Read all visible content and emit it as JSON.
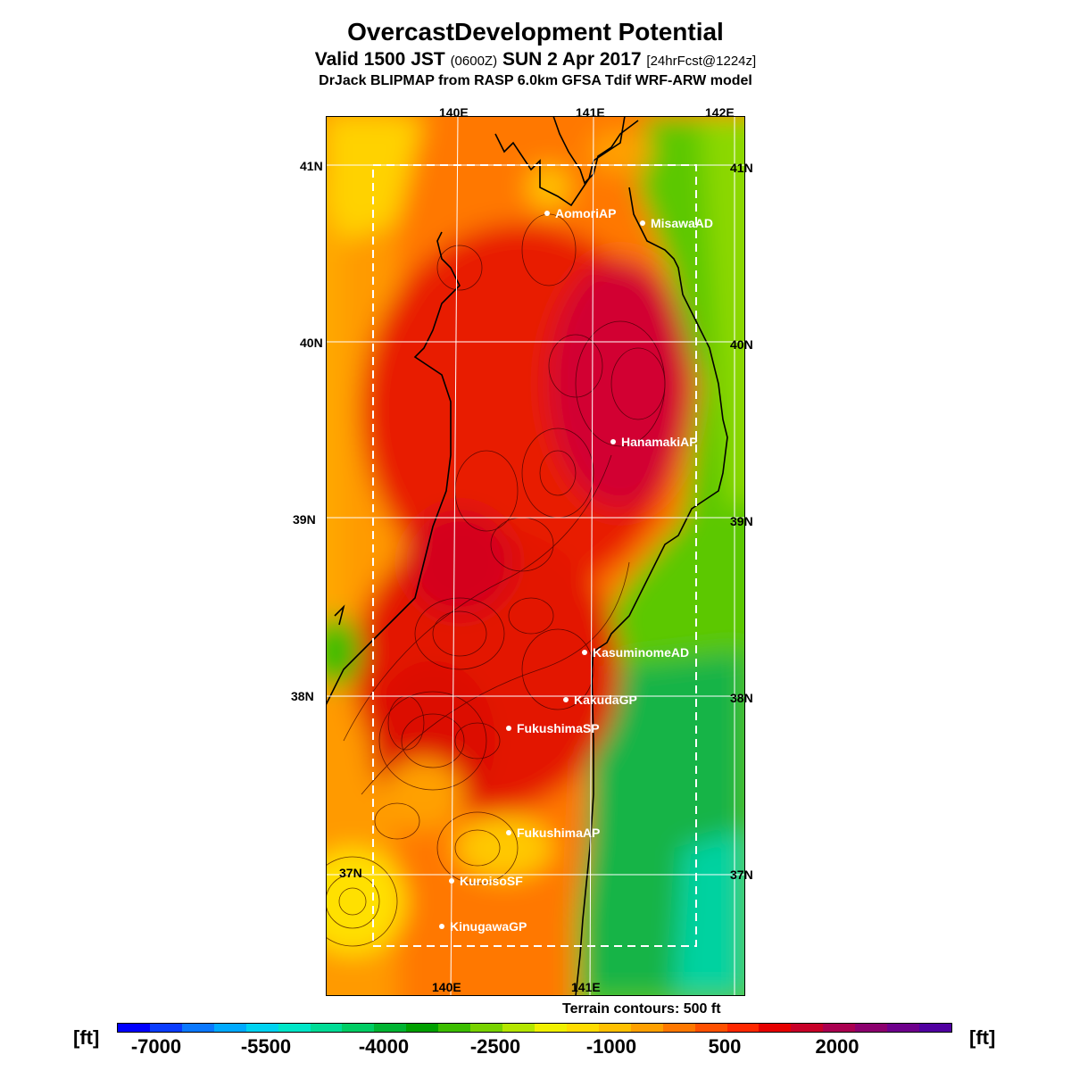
{
  "title": "OvercastDevelopment Potential",
  "subtitle_main": "Valid 1500 JST",
  "subtitle_utc": "(0600Z)",
  "subtitle_date": "SUN 2 Apr 2017",
  "subtitle_fcst": "[24hrFcst@1224z]",
  "model_line": "DrJack BLIPMAP from RASP 6.0km GFSA Tdif WRF-ARW model",
  "axis_labels": {
    "lon_top": [
      "140E",
      "141E",
      "142E"
    ],
    "lon_bottom": [
      "140E",
      "141E"
    ],
    "lat_left": [
      "41N",
      "40N",
      "39N",
      "38N",
      "37N"
    ],
    "lat_right": [
      "41N",
      "40N",
      "39N",
      "38N",
      "37N"
    ]
  },
  "stations": [
    {
      "name": "AomoriAP"
    },
    {
      "name": "MisawaAD"
    },
    {
      "name": "HanamakiAP"
    },
    {
      "name": "KasuminomeAD"
    },
    {
      "name": "KakudaGP"
    },
    {
      "name": "FukushimaSP"
    },
    {
      "name": "FukushimaAP"
    },
    {
      "name": "KuroisoSF"
    },
    {
      "name": "KinugawaGP"
    }
  ],
  "terrain_note": "Terrain contours: 500 ft",
  "colorbar": {
    "unit": "[ft]",
    "ticks": [
      "-7000",
      "-5500",
      "-4000",
      "-2500",
      "-1000",
      "500",
      "2000"
    ],
    "colors": [
      "#0000ff",
      "#0a3cff",
      "#0a78ff",
      "#00aaff",
      "#00d2f0",
      "#00e6c8",
      "#00dc96",
      "#00cd64",
      "#00b432",
      "#00a000",
      "#3cbe00",
      "#78d200",
      "#b4e600",
      "#f0f000",
      "#ffdc00",
      "#ffc000",
      "#ffa000",
      "#ff7800",
      "#ff5000",
      "#ff2800",
      "#e60000",
      "#c80028",
      "#aa0050",
      "#8c006e",
      "#6e008c",
      "#5000a0"
    ]
  }
}
